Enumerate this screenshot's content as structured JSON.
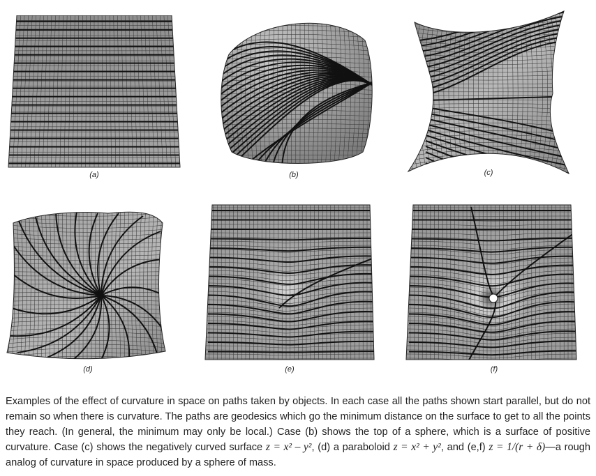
{
  "figure": {
    "panels": [
      {
        "id": "a",
        "label": "(a)"
      },
      {
        "id": "b",
        "label": "(b)"
      },
      {
        "id": "c",
        "label": "(c)"
      },
      {
        "id": "d",
        "label": "(d)"
      },
      {
        "id": "e",
        "label": "(e)"
      },
      {
        "id": "f",
        "label": "(f)"
      }
    ]
  },
  "caption": {
    "text_1": "Examples of the effect of curvature in space on paths taken by objects. In each case all the paths shown start parallel, but do not remain so when there is curvature. The paths are geodesics which go the minimum distance on the surface to get to all the points they reach. (In general, the minimum may only be local.) Case (b) shows the top of a sphere, which is a surface of positive curvature. Case (c) shows the negatively curved surface ",
    "eq_saddle": "z = x² – y²",
    "text_2": ", (d) a paraboloid ",
    "eq_paraboloid": "z = x² + y²",
    "text_3": ", and (e,f) ",
    "eq_potential": "z = 1/(r + δ)",
    "text_4": "—a rough analog of curvature in space produced by a sphere of mass."
  },
  "colors": {
    "surface_fill": "#9a9a9a",
    "mesh": "#2a2a2a",
    "geodesic": "#111111",
    "text": "#222222"
  }
}
